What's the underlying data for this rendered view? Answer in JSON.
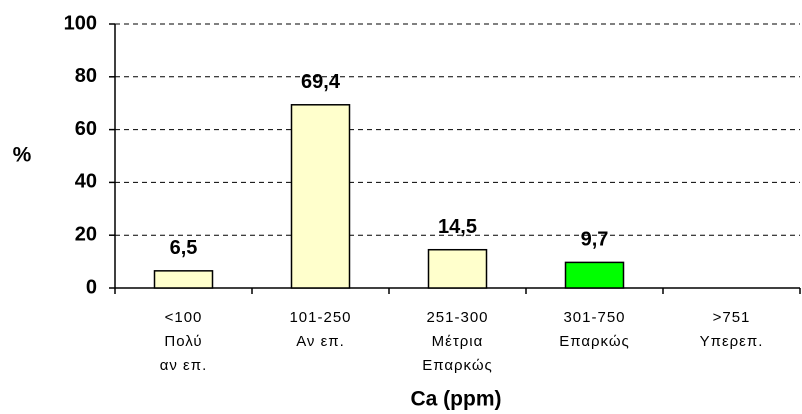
{
  "chart_data": {
    "type": "bar",
    "ylabel": "%",
    "xlabel": "Ca (ppm)",
    "categories": [
      [
        "<100",
        "Πολύ",
        "αν επ."
      ],
      [
        "101-250",
        "Αν επ."
      ],
      [
        "251-300",
        "Μέτρια",
        "Επαρκώς"
      ],
      [
        "301-750",
        "Επαρκώς"
      ],
      [
        ">751",
        "Υπερεπ."
      ]
    ],
    "values": [
      6.5,
      69.4,
      14.5,
      9.7,
      null
    ],
    "value_labels": [
      "6,5",
      "69,4",
      "14,5",
      "9,7",
      null
    ],
    "colors": [
      "#ffffcc",
      "#ffffcc",
      "#ffffcc",
      "#00ff00",
      "#ffffcc"
    ],
    "ylim": [
      0,
      100
    ],
    "yticks": [
      0,
      20,
      40,
      60,
      80,
      100
    ],
    "grid": true
  }
}
